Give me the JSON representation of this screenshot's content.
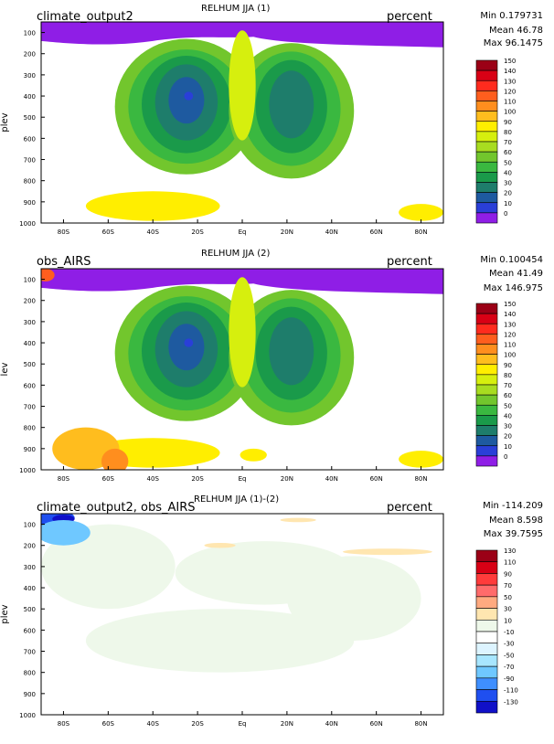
{
  "chart_data": [
    {
      "type": "heatmap",
      "case_name": "climate_output2",
      "title": "RELHUM JJA (1)",
      "units": "percent",
      "stats": {
        "min": "Min 0.179731",
        "mean": "Mean 46.78",
        "max": "Max 96.1475"
      },
      "ylabel": "plev",
      "x_ticks": [
        "80S",
        "60S",
        "40S",
        "20S",
        "Eq",
        "20N",
        "40N",
        "60N",
        "80N"
      ],
      "y_ticks": [
        "100",
        "200",
        "300",
        "400",
        "500",
        "600",
        "700",
        "800",
        "900",
        "1000"
      ],
      "xlim": [
        -90,
        90
      ],
      "ylim": [
        1000,
        50
      ],
      "colorbar": {
        "labels": [
          "150",
          "140",
          "130",
          "120",
          "110",
          "100",
          "90",
          "80",
          "70",
          "60",
          "50",
          "40",
          "30",
          "20",
          "10",
          "0"
        ],
        "colors": [
          "#9b0016",
          "#d80015",
          "#ff2b1e",
          "#ff5e1e",
          "#ff8e1e",
          "#ffbd1e",
          "#ffee00",
          "#d6ef0e",
          "#a8dc20",
          "#72c62d",
          "#3ab840",
          "#1a9a4a",
          "#1e7d6b",
          "#1e5aa0",
          "#2a3fd8",
          "#8f1ee6"
        ]
      },
      "bands": [
        {
          "color": "#a8dc20",
          "region": "background (60-70%)"
        },
        {
          "color": "#72c62d",
          "region": "mid troposphere (50-60%)"
        },
        {
          "color": "#3ab840",
          "region": "subtropical dry zones (40-50%)"
        },
        {
          "color": "#1a9a4a",
          "region": "subtropical dry zones (30-40%)"
        },
        {
          "color": "#1e7d6b",
          "region": "subtropical dry cores (20-30%)"
        },
        {
          "color": "#1e5aa0",
          "region": "southern dry core (10-20%)"
        },
        {
          "color": "#d6ef0e",
          "region": "lower troposphere moist (70-80%)"
        },
        {
          "color": "#8f1ee6",
          "region": "upper troposphere (<10%)"
        }
      ]
    },
    {
      "type": "heatmap",
      "case_name": "obs_AIRS",
      "title": "RELHUM JJA (2)",
      "units": "percent",
      "stats": {
        "min": "Min 0.100454",
        "mean": "Mean 41.49",
        "max": "Max 146.975"
      },
      "ylabel": "lev",
      "x_ticks": [
        "80S",
        "60S",
        "40S",
        "20S",
        "Eq",
        "20N",
        "40N",
        "60N",
        "80N"
      ],
      "y_ticks": [
        "100",
        "200",
        "300",
        "400",
        "500",
        "600",
        "700",
        "800",
        "900",
        "1000"
      ],
      "xlim": [
        -90,
        90
      ],
      "ylim": [
        1000,
        50
      ],
      "colorbar": {
        "labels": [
          "150",
          "140",
          "130",
          "120",
          "110",
          "100",
          "90",
          "80",
          "70",
          "60",
          "50",
          "40",
          "30",
          "20",
          "10",
          "0"
        ],
        "colors": [
          "#9b0016",
          "#d80015",
          "#ff2b1e",
          "#ff5e1e",
          "#ff8e1e",
          "#ffbd1e",
          "#ffee00",
          "#d6ef0e",
          "#a8dc20",
          "#72c62d",
          "#3ab840",
          "#1a9a4a",
          "#1e7d6b",
          "#1e5aa0",
          "#2a3fd8",
          "#8f1ee6"
        ]
      }
    },
    {
      "type": "heatmap",
      "case_name": "climate_output2, obs_AIRS",
      "title": "RELHUM JJA (1)-(2)",
      "units": "percent",
      "stats": {
        "min": "Min -114.209",
        "mean": "Mean 8.598",
        "max": "Max 39.7595"
      },
      "ylabel": "plev",
      "x_ticks": [
        "80S",
        "60S",
        "40S",
        "20S",
        "Eq",
        "20N",
        "40N",
        "60N",
        "80N"
      ],
      "y_ticks": [
        "100",
        "200",
        "300",
        "400",
        "500",
        "600",
        "700",
        "800",
        "900",
        "1000"
      ],
      "xlim": [
        -90,
        90
      ],
      "ylim": [
        1000,
        50
      ],
      "colorbar": {
        "labels": [
          "130",
          "110",
          "90",
          "70",
          "50",
          "30",
          "10",
          "-10",
          "-30",
          "-50",
          "-70",
          "-90",
          "-110",
          "-130"
        ],
        "colors": [
          "#9b0016",
          "#d80015",
          "#ff3b3b",
          "#ff6b6b",
          "#ffaa80",
          "#ffe6b0",
          "#eef8ea",
          "#ffffff",
          "#ddf4ff",
          "#a8e6ff",
          "#6fc8ff",
          "#3f8fff",
          "#1f4ff0",
          "#1010c8"
        ]
      }
    }
  ]
}
